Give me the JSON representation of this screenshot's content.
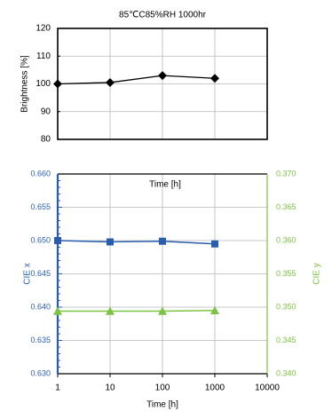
{
  "chart_data": [
    {
      "type": "line",
      "title": "85℃C85%RH 1000hr",
      "xlabel": "",
      "ylabel": "Brightness [%]",
      "xscale": "log",
      "xlim": [
        1,
        10000
      ],
      "ylim": [
        80,
        120
      ],
      "yticks": [
        "80",
        "90",
        "100",
        "110",
        "120"
      ],
      "grid": true,
      "series": [
        {
          "name": "",
          "x": [
            1,
            10,
            100,
            1000
          ],
          "y": [
            100,
            100.5,
            103,
            102
          ],
          "color": "#000000",
          "marker": "diamond"
        }
      ]
    },
    {
      "type": "line",
      "title": "",
      "inner_label": "Time [h]",
      "xlabel": "Time [h]",
      "xscale": "log",
      "xlim": [
        1,
        10000
      ],
      "xticks": [
        "1",
        "10",
        "100",
        "1000",
        "10000"
      ],
      "ylabel_left": "CIE x",
      "ylim_left": [
        0.63,
        0.66
      ],
      "yticks_left": [
        "0.630",
        "0.635",
        "0.640",
        "0.645",
        "0.650",
        "0.655",
        "0.660"
      ],
      "ylabel_right": "CIE y",
      "ylim_right": [
        0.34,
        0.37
      ],
      "yticks_right": [
        "0.340",
        "0.345",
        "0.350",
        "0.355",
        "0.360",
        "0.365",
        "0.370"
      ],
      "grid": true,
      "series": [
        {
          "name": "CIE x",
          "axis": "left",
          "x": [
            1,
            10,
            100,
            1000
          ],
          "y": [
            0.65,
            0.6498,
            0.6499,
            0.6495
          ],
          "color": "#2a5db0",
          "marker": "square"
        },
        {
          "name": "CIE y",
          "axis": "right",
          "x": [
            1,
            10,
            100,
            1000
          ],
          "y": [
            0.3494,
            0.3494,
            0.3494,
            0.3495
          ],
          "color": "#7dc242",
          "marker": "triangle"
        }
      ]
    }
  ]
}
